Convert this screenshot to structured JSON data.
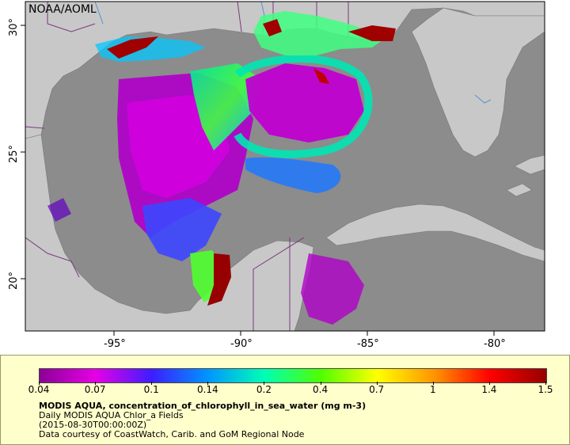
{
  "watermark": "NOAA/AOML",
  "map": {
    "lon_labels": [
      "-95°",
      "-90°",
      "-85°",
      "-80°"
    ],
    "lat_labels": [
      "30°",
      "25°",
      "20°"
    ],
    "colors": {
      "ocean_nodata": "#8c8c8c",
      "land": "#c8c8c8",
      "border": "#7a3a7a",
      "river": "#5a8fd0"
    }
  },
  "legend": {
    "colorbar_ticks": [
      "0.04",
      "0.07",
      "0.1",
      "0.14",
      "0.2",
      "0.4",
      "0.7",
      "1",
      "1.4",
      "1.5"
    ],
    "variable": "MODIS AQUA, concentration_of_chlorophyll_in_sea_water (mg m-3)",
    "dataset": "Daily MODIS AQUA Chlor_a Fields",
    "time": "(2015-08-30T00:00:00Z)",
    "credit": "Data courtesy of CoastWatch, Carib. and GoM Regional Node"
  },
  "colorbar_colors": [
    "#8c0096",
    "#e600e6",
    "#3c1eff",
    "#0096ff",
    "#00ffb4",
    "#50ff00",
    "#ffff00",
    "#ff9600",
    "#ff0000",
    "#960000"
  ]
}
